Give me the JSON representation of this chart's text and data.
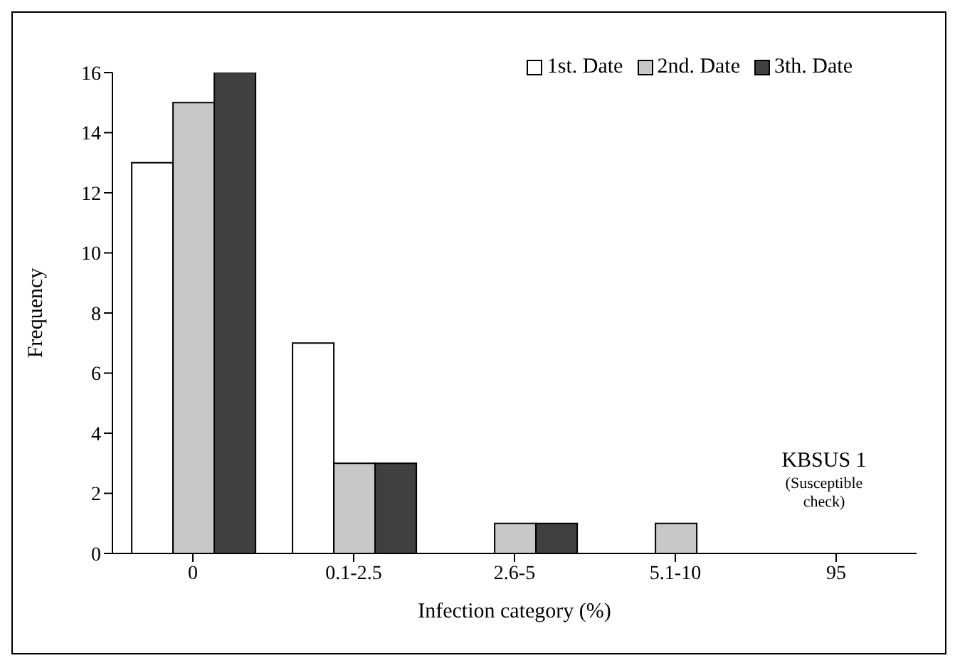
{
  "chart_data": {
    "type": "bar",
    "xlabel": "Infection category (%)",
    "ylabel": "Frequency",
    "categories": [
      "0",
      "0.1-2.5",
      "2.6-5",
      "5.1-10",
      "95"
    ],
    "series": [
      {
        "name": "1st. Date",
        "color": "#ffffff",
        "values": [
          13,
          7,
          0,
          0,
          0
        ]
      },
      {
        "name": "2nd. Date",
        "color": "#c8c8c8",
        "values": [
          15,
          3,
          1,
          1,
          0
        ]
      },
      {
        "name": "3th. Date",
        "color": "#404040",
        "values": [
          16,
          3,
          1,
          0,
          0
        ]
      }
    ],
    "ylim": [
      0,
      16
    ],
    "yticks": [
      0,
      2,
      4,
      6,
      8,
      10,
      12,
      14,
      16
    ],
    "grid": false,
    "legend": "top right",
    "annotations": [
      "KBSUS 1",
      "(Susceptible check)"
    ]
  }
}
